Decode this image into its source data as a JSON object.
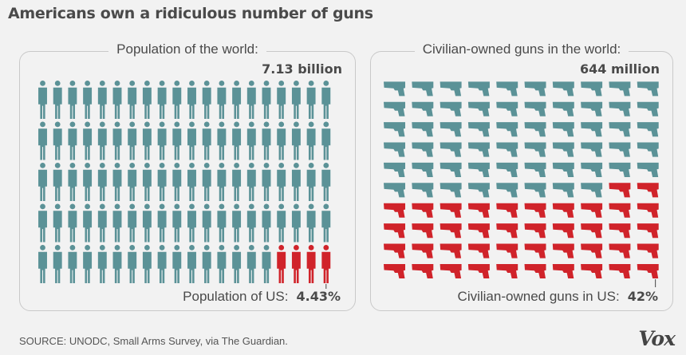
{
  "title": "Americans own a ridiculous number of guns",
  "source": "SOURCE: UNODC, Small Arms Survey, via The Guardian.",
  "logo": "Vox",
  "colors": {
    "us": "#d0232a",
    "world": "#5b9297",
    "text": "#4a4a4a"
  },
  "icons": {
    "population": "person-icon",
    "guns": "pistol-icon"
  },
  "chart_data": [
    {
      "type": "pictograph",
      "heading": "Population of the world:",
      "total_label": "7.13 billion",
      "share_label": "Population of US:",
      "share_value": "4.43%",
      "total": 7.13,
      "us_share_percent": 4.43,
      "icon": "person-icon",
      "rows": 5,
      "cols": 20
    },
    {
      "type": "pictograph",
      "heading": "Civilian-owned guns in the world:",
      "total_label": "644 million",
      "share_label": "Civilian-owned guns in US:",
      "share_value": "42%",
      "total": 644,
      "us_share_percent": 42,
      "icon": "pistol-icon",
      "rows": 10,
      "cols": 10
    }
  ]
}
